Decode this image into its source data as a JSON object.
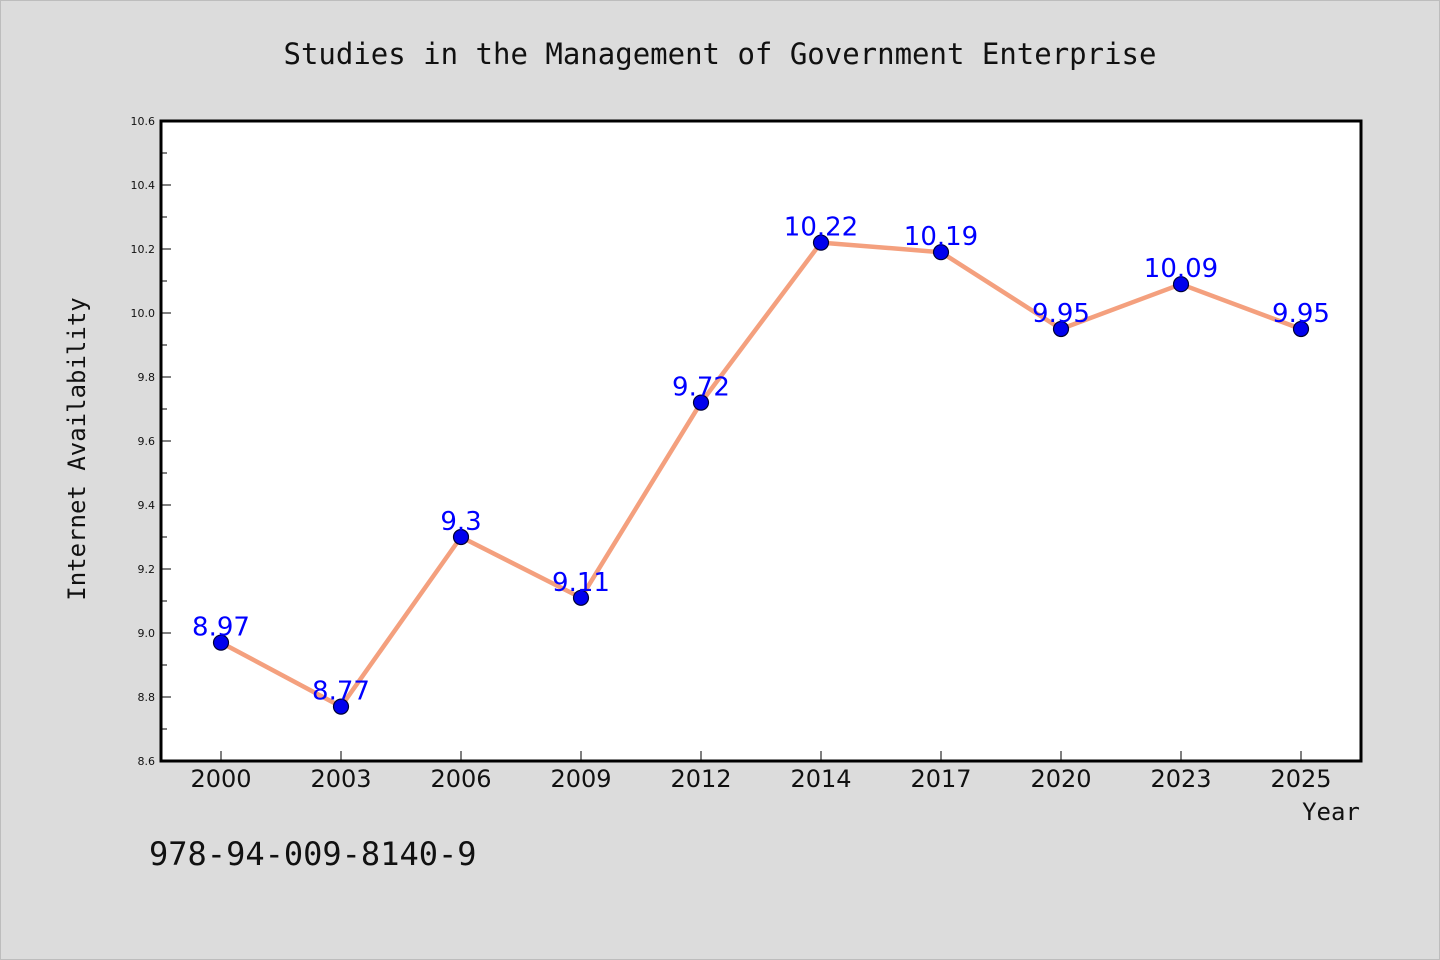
{
  "chart_data": {
    "type": "line",
    "title": "Studies in the Management of Government Enterprise",
    "xlabel": "Year",
    "ylabel": "Internet Availability",
    "categories": [
      "2000",
      "2003",
      "2006",
      "2009",
      "2012",
      "2014",
      "2017",
      "2020",
      "2023",
      "2025"
    ],
    "series": [
      {
        "values": [
          8.97,
          8.77,
          9.3,
          9.11,
          9.72,
          10.22,
          10.19,
          9.95,
          10.09,
          9.95
        ],
        "labels": [
          "8.97",
          "8.77",
          "9.3",
          "9.11",
          "9.72",
          "10.22",
          "10.19",
          "9.95",
          "10.09",
          "9.95"
        ]
      }
    ],
    "ylim": [
      8.6,
      10.6
    ],
    "yticks": [
      8.6,
      8.8,
      9.0,
      9.2,
      9.4,
      9.6,
      9.8,
      10.0,
      10.2,
      10.4,
      10.6
    ],
    "ytick_labels": [
      "8.6",
      "8.8",
      "9.0",
      "9.2",
      "9.4",
      "9.6",
      "9.8",
      "10.0",
      "10.2",
      "10.4",
      "10.6"
    ],
    "grid": false,
    "legend": "none",
    "colors": {
      "line": "#f4a07e",
      "marker_fill": "#0000ee",
      "marker_edge": "#000033",
      "data_label": "#0000ff",
      "plot_background": "#ffffff",
      "figure_background": "#dcdcdc"
    }
  },
  "footer": {
    "isbn": "978-94-009-8140-9"
  }
}
